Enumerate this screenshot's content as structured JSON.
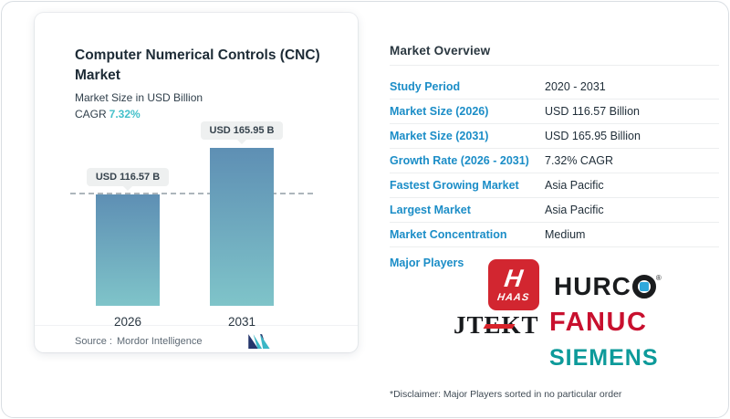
{
  "chart_card": {
    "title": "Computer Numerical Controls (CNC) Market",
    "subtitle": "Market Size in USD Billion",
    "cagr_label": "CAGR",
    "cagr_value": "7.32%",
    "source_label": "Source :",
    "source_value": "Mordor Intelligence",
    "accent_teal": "#44c0ca"
  },
  "chart_data": {
    "type": "bar",
    "title": "Computer Numerical Controls (CNC) Market",
    "ylabel": "Market Size in USD Billion",
    "xlabel": "",
    "categories": [
      "2026",
      "2031"
    ],
    "values": [
      116.57,
      165.95
    ],
    "bar_labels": [
      "USD 116.57 B",
      "USD 165.95 B"
    ],
    "bar_gradient_top": "#5e8fb4",
    "bar_gradient_bottom": "#7fc4c9",
    "reference_line_at": 116.57,
    "reference_line_style": "dashed",
    "ylim": [
      0,
      180
    ],
    "grid": false,
    "legend": "none"
  },
  "overview": {
    "title": "Market Overview",
    "rows": [
      {
        "label": "Study Period",
        "value": "2020 - 2031"
      },
      {
        "label": "Market Size (2026)",
        "value": "USD 116.57 Billion"
      },
      {
        "label": "Market Size (2031)",
        "value": "USD 165.95 Billion"
      },
      {
        "label": "Growth Rate (2026 - 2031)",
        "value": "7.32% CAGR"
      },
      {
        "label": "Fastest Growing Market",
        "value": "Asia Pacific"
      },
      {
        "label": "Largest Market",
        "value": "Asia Pacific"
      },
      {
        "label": "Market Concentration",
        "value": "Medium"
      }
    ],
    "major_players_label": "Major Players",
    "label_color": "#1b8dc7",
    "disclaimer": "*Disclaimer: Major Players sorted in no particular order"
  },
  "logos": {
    "haas_h": "H",
    "haas_word": "HAAS",
    "hurco_left": "HURC",
    "hurco_reg": "®",
    "jtekt": "JTEKT",
    "fanuc": "FANUC",
    "siemens": "SIEMENS"
  }
}
